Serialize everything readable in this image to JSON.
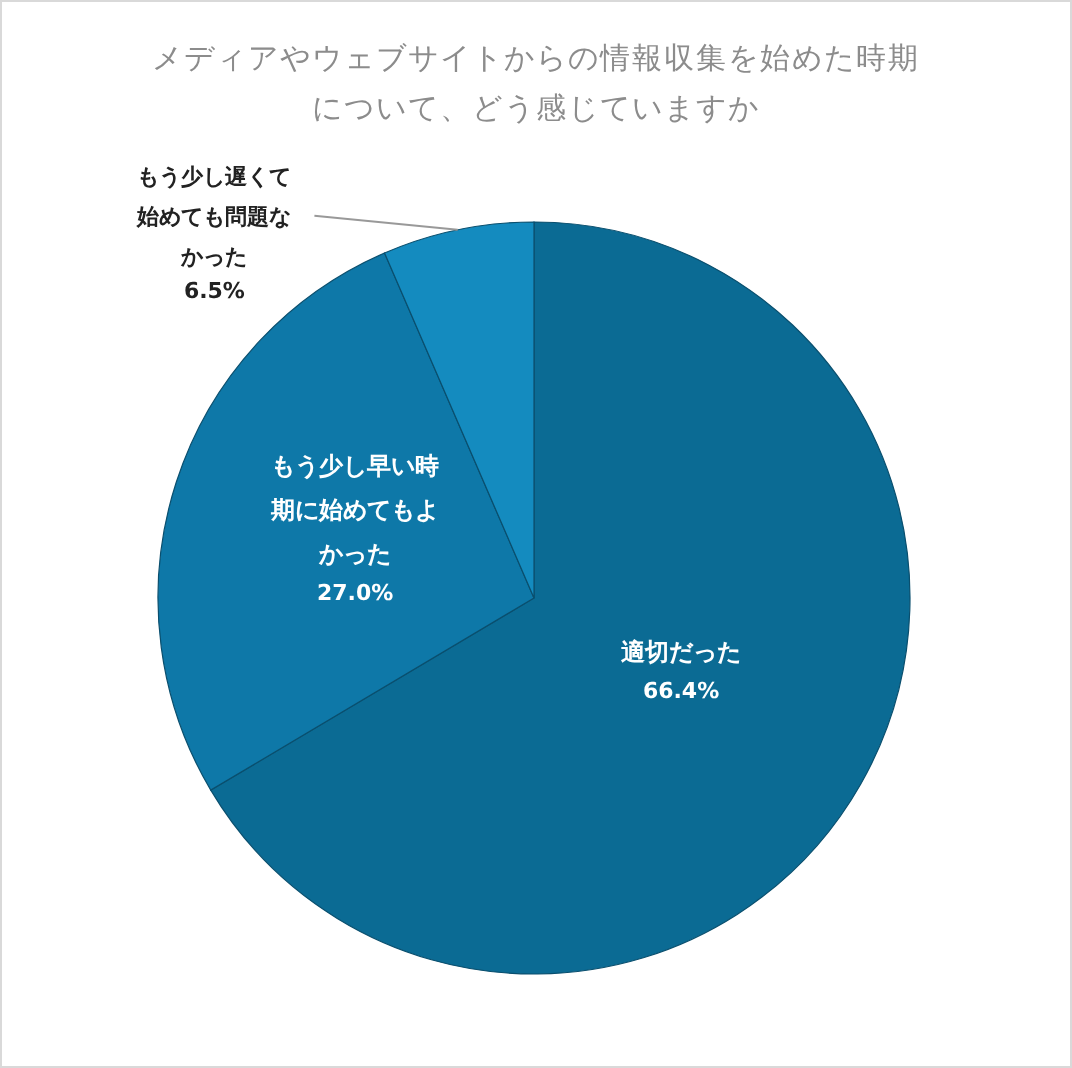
{
  "chart_data": {
    "type": "pie",
    "title": "メディアやウェブサイトからの情報収集を始めた時期について、どう感じていますか",
    "categories": [
      "適切だった",
      "もう少し早い時期に始めてもよかった",
      "もう少し遅くて始めても問題なかった"
    ],
    "values": [
      66.4,
      27.0,
      6.5
    ],
    "value_labels": [
      "66.4%",
      "27.0%",
      "6.5%"
    ],
    "colors": [
      "#0b6b94",
      "#0e78a8",
      "#148bbf"
    ]
  }
}
